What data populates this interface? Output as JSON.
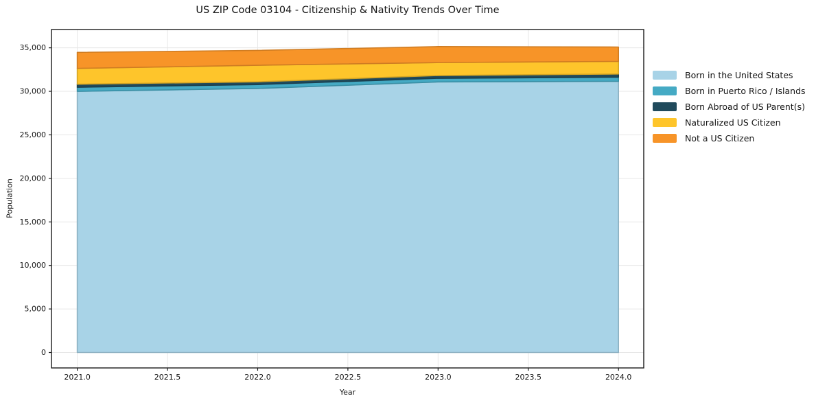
{
  "chart_data": {
    "type": "area",
    "stacked": true,
    "title": "US ZIP Code 03104 - Citizenship & Nativity Trends Over Time",
    "xlabel": "Year",
    "ylabel": "Population",
    "x": [
      2021,
      2022,
      2023,
      2024
    ],
    "series": [
      {
        "name": "Born in the United States",
        "color": "#a8d3e7",
        "values": [
          30000,
          30330,
          31080,
          31150
        ]
      },
      {
        "name": "Born in Puerto Rico / Islands",
        "color": "#45aac4",
        "values": [
          470,
          450,
          420,
          475
        ]
      },
      {
        "name": "Born Abroad of US Parent(s)",
        "color": "#204a5c",
        "values": [
          350,
          315,
          315,
          365
        ]
      },
      {
        "name": "Naturalized US Citizen",
        "color": "#fec52b",
        "values": [
          1815,
          1900,
          1490,
          1450
        ]
      },
      {
        "name": "Not a US Citizen",
        "color": "#f79428",
        "values": [
          1840,
          1705,
          1835,
          1650
        ]
      }
    ],
    "xtick_values": [
      2021.0,
      2021.5,
      2022.0,
      2022.5,
      2023.0,
      2023.5,
      2024.0
    ],
    "xtick_labels": [
      "2021.0",
      "2021.5",
      "2022.0",
      "2022.5",
      "2023.0",
      "2023.5",
      "2024.0"
    ],
    "ytick_values": [
      0,
      5000,
      10000,
      15000,
      20000,
      25000,
      30000,
      35000
    ],
    "ytick_labels": [
      "0",
      "5,000",
      "10,000",
      "15,000",
      "20,000",
      "25,000",
      "30,000",
      "35,000"
    ],
    "xlim": [
      2020.857,
      2024.14
    ],
    "ylim": [
      -1774,
      37100
    ],
    "grid": true,
    "grid_color": "#e7e7e7",
    "spine_color": "#1a1a1a",
    "legend_position": "right"
  }
}
